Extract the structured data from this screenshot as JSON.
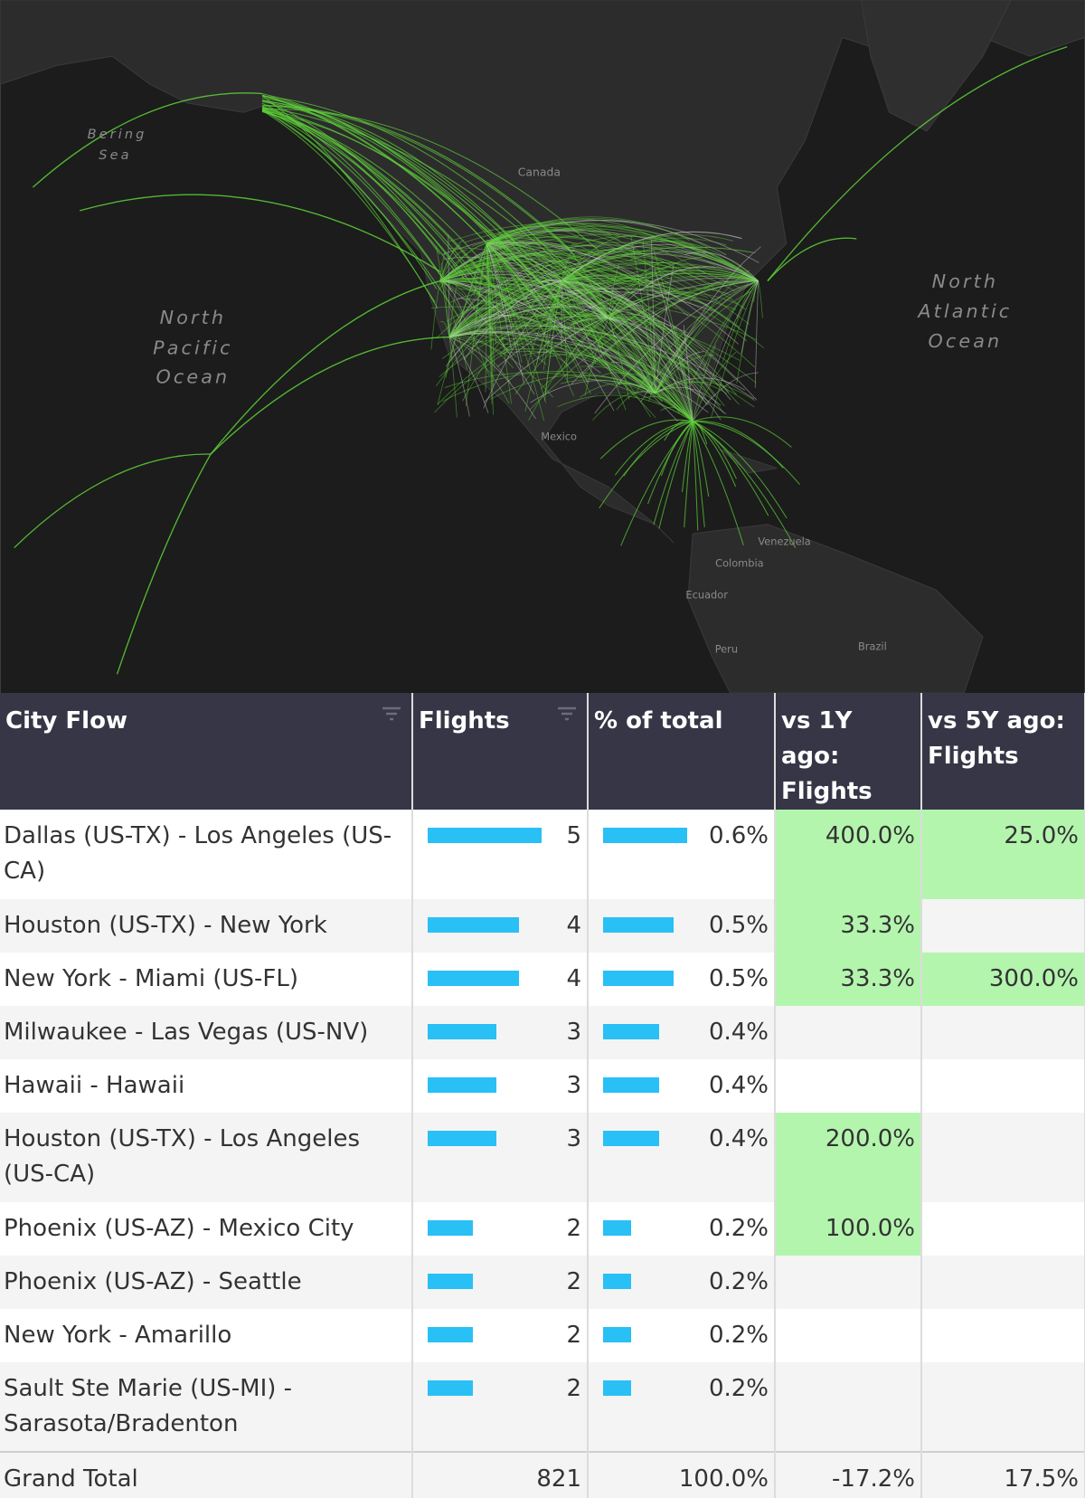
{
  "map": {
    "labels": [
      "Bering",
      "Sea",
      "Canada",
      "North",
      "Pacific",
      "Ocean",
      "North",
      "Atlantic",
      "Ocean",
      "Mexico",
      "Venezuela",
      "Colombia",
      "Ecuador",
      "Peru",
      "Brazil"
    ]
  },
  "table": {
    "headers": [
      "City Flow",
      "Flights",
      "% of total",
      "vs 1Y ago: Flights",
      "vs 5Y ago: Flights"
    ],
    "rows": [
      {
        "flow": "Dallas (US-TX) - Los Angeles (US-CA)",
        "flights": 5,
        "pct": {
          "value": 0.6,
          "label": "0.6%"
        },
        "vs1y": "400.0%",
        "vs5y": "25.0%"
      },
      {
        "flow": "Houston (US-TX) - New York",
        "flights": 4,
        "pct": {
          "value": 0.5,
          "label": "0.5%"
        },
        "vs1y": "33.3%",
        "vs5y": null
      },
      {
        "flow": "New York - Miami (US-FL)",
        "flights": 4,
        "pct": {
          "value": 0.5,
          "label": "0.5%"
        },
        "vs1y": "33.3%",
        "vs5y": "300.0%"
      },
      {
        "flow": "Milwaukee - Las Vegas (US-NV)",
        "flights": 3,
        "pct": {
          "value": 0.4,
          "label": "0.4%"
        },
        "vs1y": null,
        "vs5y": null
      },
      {
        "flow": "Hawaii - Hawaii",
        "flights": 3,
        "pct": {
          "value": 0.4,
          "label": "0.4%"
        },
        "vs1y": null,
        "vs5y": null
      },
      {
        "flow": "Houston (US-TX) - Los Angeles (US-CA)",
        "flights": 3,
        "pct": {
          "value": 0.4,
          "label": "0.4%"
        },
        "vs1y": "200.0%",
        "vs5y": null
      },
      {
        "flow": "Phoenix (US-AZ) - Mexico City",
        "flights": 2,
        "pct": {
          "value": 0.2,
          "label": "0.2%"
        },
        "vs1y": "100.0%",
        "vs5y": null
      },
      {
        "flow": "Phoenix (US-AZ) - Seattle",
        "flights": 2,
        "pct": {
          "value": 0.2,
          "label": "0.2%"
        },
        "vs1y": null,
        "vs5y": null
      },
      {
        "flow": "New York - Amarillo",
        "flights": 2,
        "pct": {
          "value": 0.2,
          "label": "0.2%"
        },
        "vs1y": null,
        "vs5y": null
      },
      {
        "flow": "Sault Ste Marie (US-MI) - Sarasota/Bradenton",
        "flights": 2,
        "pct": {
          "value": 0.2,
          "label": "0.2%"
        },
        "vs1y": null,
        "vs5y": null
      }
    ],
    "total": {
      "label": "Grand Total",
      "flights": 821,
      "pct": "100.0%",
      "vs1y": "-17.2%",
      "vs5y": "17.5%"
    }
  }
}
